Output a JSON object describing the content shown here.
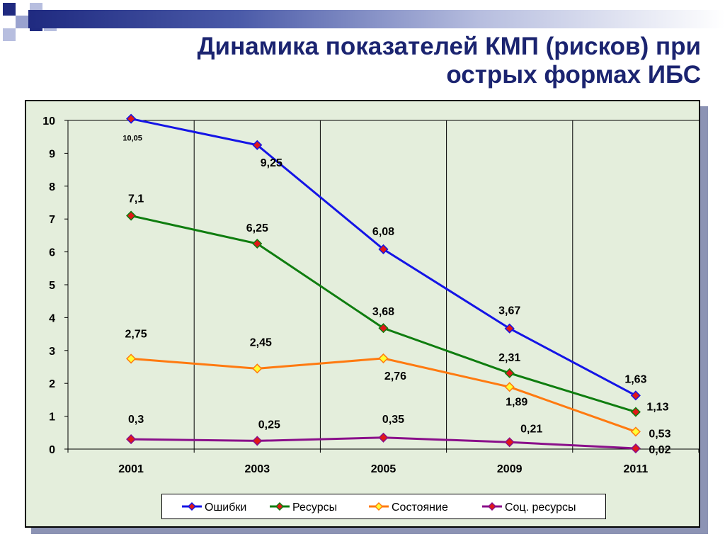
{
  "title_line1": "Динамика показателей КМП (рисков) при",
  "title_line2": "острых формах ИБС",
  "chart_data": {
    "type": "line",
    "categories": [
      "2001",
      "2003",
      "2005",
      "2009",
      "2011"
    ],
    "ylim": [
      0,
      10
    ],
    "yticks": [
      "0",
      "1",
      "2",
      "3",
      "4",
      "5",
      "6",
      "7",
      "8",
      "9",
      "10"
    ],
    "grid": "vertical",
    "legend_position": "bottom",
    "series": [
      {
        "name": "Ошибки",
        "color": "#1414e6",
        "marker_color": "#e01818",
        "values": [
          10.05,
          9.25,
          6.08,
          3.67,
          1.63
        ],
        "labels": [
          "10,05",
          "9,25",
          "6,08",
          "3,67",
          "1,63"
        ]
      },
      {
        "name": "Ресурсы",
        "color": "#0f7d0f",
        "marker_color": "#e01818",
        "values": [
          7.1,
          6.25,
          3.68,
          2.31,
          1.13
        ],
        "labels": [
          "7,1",
          "6,25",
          "3,68",
          "2,31",
          "1,13"
        ]
      },
      {
        "name": "Состояние",
        "color": "#ff7a10",
        "marker_color": "#ffff33",
        "values": [
          2.75,
          2.45,
          2.76,
          1.89,
          0.53
        ],
        "labels": [
          "2,75",
          "2,45",
          "2,76",
          "1,89",
          "0,53"
        ]
      },
      {
        "name": "Соц. ресурсы",
        "color": "#8a0f8a",
        "marker_color": "#e01818",
        "values": [
          0.3,
          0.25,
          0.35,
          0.21,
          0.02
        ],
        "labels": [
          "0,3",
          "0,25",
          "0,35",
          "0,21",
          "0,02"
        ]
      }
    ]
  }
}
